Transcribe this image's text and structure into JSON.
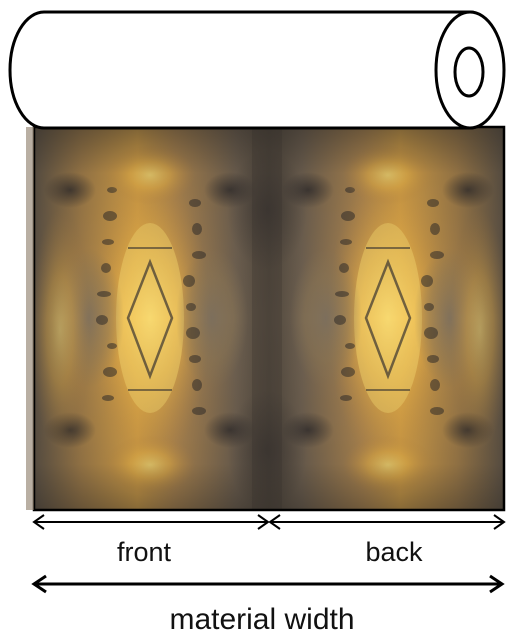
{
  "labels": {
    "front": "front",
    "back": "back",
    "material_width": "material width"
  },
  "colors": {
    "outline": "#000000",
    "roll_fill": "#ffffff",
    "pattern_dark": "#4a4238",
    "pattern_mid": "#9a7a48",
    "pattern_light": "#e8b450",
    "pattern_bright": "#f6d36a"
  },
  "icons": {
    "arrow": "double-headed-arrow",
    "roll": "fabric-roll-cylinder"
  }
}
